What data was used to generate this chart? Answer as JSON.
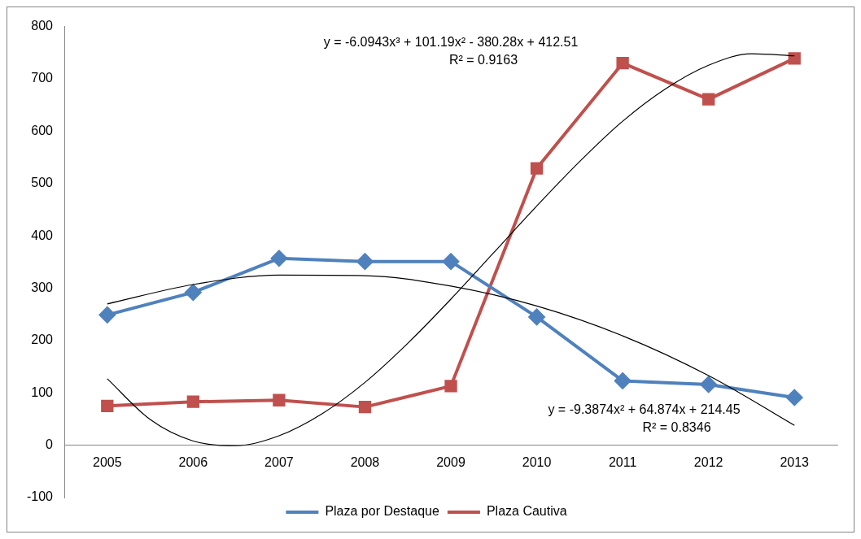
{
  "chart_data": {
    "type": "line",
    "x": [
      2005,
      2006,
      2007,
      2008,
      2009,
      2010,
      2011,
      2012,
      2013
    ],
    "xlim": [
      2004.5,
      2013.5
    ],
    "xticks": [
      2005,
      2006,
      2007,
      2008,
      2009,
      2010,
      2011,
      2012,
      2013
    ],
    "ylim": [
      -100,
      800
    ],
    "yticks": [
      -100,
      0,
      100,
      200,
      300,
      400,
      500,
      600,
      700,
      800
    ],
    "grid": false,
    "legend": "bottom",
    "line_style": "solid",
    "series": [
      {
        "name": "Plaza por Destaque",
        "color": "#4f81bd",
        "marker": "diamond",
        "values": [
          249,
          292,
          357,
          351,
          351,
          245,
          123,
          116,
          91
        ]
      },
      {
        "name": "Plaza Cautiva",
        "color": "#c0504d",
        "marker": "square",
        "values": [
          75,
          83,
          86,
          73,
          113,
          529,
          730,
          661,
          739
        ]
      },
      {
        "color": "#000000",
        "marker": "none",
        "x": [
          2005,
          2005.5,
          2006,
          2006.5,
          2007,
          2007.5,
          2008,
          2008.5,
          2009,
          2009.5,
          2010,
          2010.5,
          2011,
          2011.5,
          2012,
          2012.5,
          2013
        ],
        "values": [
          127,
          49,
          8,
          -1,
          18,
          60,
          120,
          195,
          279,
          368,
          457,
          542,
          619,
          681,
          726,
          748,
          744
        ]
      },
      {
        "color": "#000000",
        "marker": "none",
        "x": [
          2005,
          2006,
          2007,
          2008,
          2009,
          2010,
          2011,
          2012,
          2013
        ],
        "values": [
          270,
          307,
          325,
          324,
          304,
          266,
          209,
          133,
          38
        ]
      }
    ],
    "annotations": [
      "y = -6.0943x³ + 101.19x² - 380.28x + 412.51\nR² = 0.9163",
      "y = -9.3874x² + 64.874x + 214.45\nR² = 0.8346"
    ]
  }
}
